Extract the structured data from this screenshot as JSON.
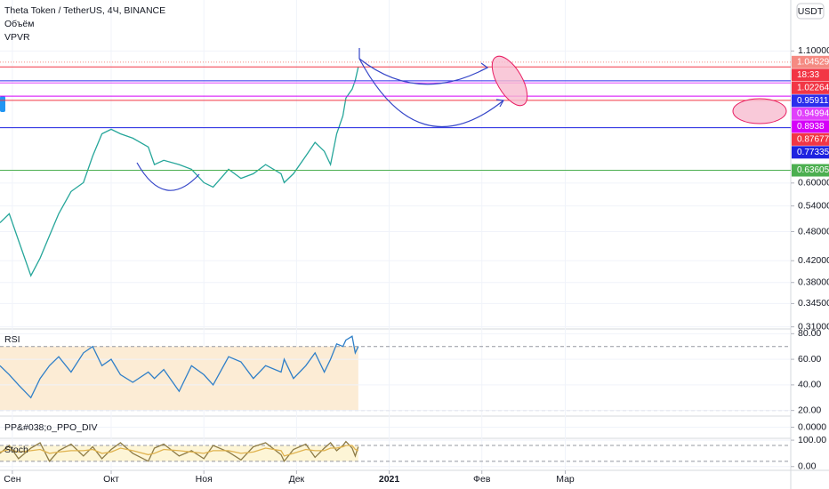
{
  "chart_data": [
    {
      "type": "line",
      "title": "Theta Token / TetherUS, 4Ч, BINANCE",
      "indicators": [
        "Объём",
        "VPVR"
      ],
      "currency": "USDT",
      "log_scale": true,
      "grid": true,
      "color": "#26a69a",
      "x": [
        0,
        3,
        6,
        10,
        13,
        16,
        19,
        23,
        27,
        30,
        33,
        36,
        39,
        43,
        48,
        50,
        53,
        58,
        62,
        66,
        69,
        74,
        78,
        82,
        86,
        91,
        92,
        95,
        99,
        102,
        105,
        107,
        109,
        111,
        112,
        114,
        115,
        116
      ],
      "values": [
        0.5,
        0.521,
        0.461,
        0.392,
        0.425,
        0.471,
        0.521,
        0.577,
        0.601,
        0.679,
        0.752,
        0.768,
        0.752,
        0.737,
        0.708,
        0.653,
        0.666,
        0.653,
        0.639,
        0.601,
        0.589,
        0.639,
        0.613,
        0.626,
        0.653,
        0.626,
        0.601,
        0.626,
        0.679,
        0.723,
        0.694,
        0.653,
        0.752,
        0.817,
        0.886,
        0.923,
        0.961,
        1.022
      ],
      "xlim": [
        0,
        256
      ],
      "xticks": [
        {
          "value": 4,
          "label": "Сен"
        },
        {
          "value": 36,
          "label": "Окт"
        },
        {
          "value": 66,
          "label": "Ноя"
        },
        {
          "value": 96,
          "label": "Дек"
        },
        126,
        {
          "value": 126,
          "label": "2021"
        },
        {
          "value": 156,
          "label": "Фев"
        },
        {
          "value": 183,
          "label": "Мар"
        }
      ],
      "ylim": [
        0.307,
        1.39
      ],
      "yticks": [
        {
          "value": 1.1,
          "label": "1.10000"
        },
        {
          "value": 0.6,
          "label": "0.60000"
        },
        {
          "value": 0.54,
          "label": "0.54000"
        },
        {
          "value": 0.48,
          "label": "0.48000"
        },
        {
          "value": 0.42,
          "label": "0.42000"
        },
        {
          "value": 0.38,
          "label": "0.38000"
        },
        {
          "value": 0.345,
          "label": "0.34500"
        },
        {
          "value": 0.31,
          "label": "0.31000"
        }
      ],
      "levels": [
        {
          "value": 1.04529,
          "color": "#f58a82",
          "dash": true
        },
        {
          "value": 1.02264,
          "color": "#f23645"
        },
        {
          "value": 0.95911,
          "color": "#2a2eec"
        },
        {
          "value": 0.94994,
          "color": "#e040fb"
        },
        {
          "value": 0.8938,
          "color": "#d500f9"
        },
        {
          "value": 0.87677,
          "color": "#f23645"
        },
        {
          "value": 0.77335,
          "color": "#1e22e0"
        },
        {
          "value": 0.63605,
          "color": "#4caf50"
        }
      ],
      "countdown": "18:33"
    },
    {
      "type": "line",
      "title": "RSI",
      "color": "#2f7fc8",
      "band_color": "#fcecd5",
      "values": [
        55,
        48,
        40,
        30,
        45,
        55,
        62,
        50,
        65,
        70,
        55,
        60,
        48,
        42,
        50,
        45,
        52,
        35,
        55,
        48,
        40,
        62,
        58,
        45,
        55,
        50,
        60,
        45,
        55,
        65,
        50,
        60,
        72,
        70,
        75,
        78,
        65,
        70
      ],
      "ylim": [
        15.6,
        83.7
      ],
      "yticks": [
        {
          "value": 80,
          "label": "80.00"
        },
        {
          "value": 60,
          "label": "60.00"
        },
        {
          "value": 40,
          "label": "40.00"
        },
        {
          "value": 20,
          "label": "20.00"
        }
      ],
      "bands": [
        70,
        20
      ]
    },
    {
      "type": "dots",
      "title": "PP&#038;o_PPO_DIV",
      "ylim": [
        -1,
        1
      ],
      "yticks": [
        {
          "value": 0,
          "label": "0.0000"
        }
      ]
    },
    {
      "type": "line",
      "title": "Stoch",
      "band_color": "#fdf5d6",
      "series": [
        {
          "color": "#8d7b46",
          "values": [
            50,
            80,
            30,
            70,
            90,
            20,
            60,
            85,
            40,
            75,
            30,
            65,
            90,
            50,
            20,
            70,
            85,
            40,
            60,
            30,
            80,
            55,
            25,
            75,
            90,
            45,
            20,
            65,
            85,
            35,
            70,
            90,
            60,
            80,
            95,
            70,
            40,
            75
          ]
        },
        {
          "color": "#e0b34f",
          "values": [
            55,
            65,
            55,
            60,
            65,
            50,
            55,
            60,
            60,
            65,
            50,
            55,
            70,
            60,
            45,
            50,
            65,
            60,
            55,
            50,
            60,
            60,
            50,
            55,
            70,
            60,
            40,
            50,
            65,
            60,
            60,
            70,
            70,
            75,
            80,
            80,
            65,
            60
          ]
        }
      ],
      "ylim": [
        -14.3,
        107
      ],
      "yticks": [
        {
          "value": 100,
          "label": "100.00"
        },
        {
          "value": 0,
          "label": "0.00"
        }
      ],
      "bands": [
        80,
        20
      ]
    }
  ]
}
